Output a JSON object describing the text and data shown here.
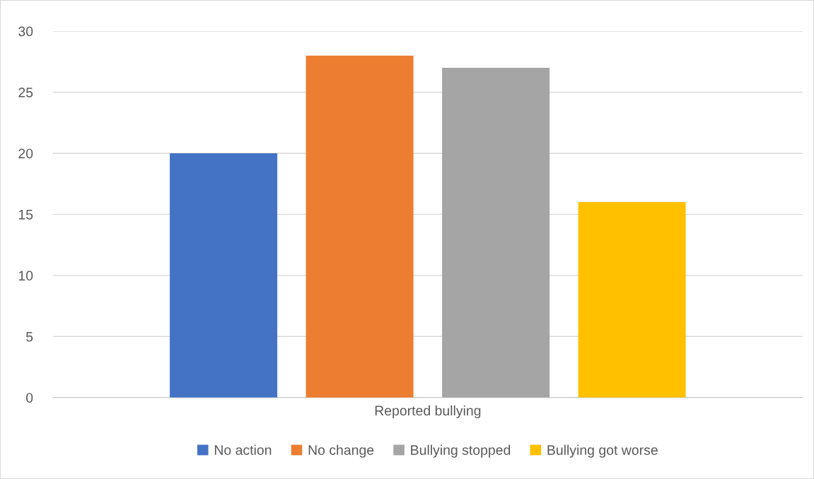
{
  "chart_data": {
    "type": "bar",
    "categories": [
      "Reported bullying"
    ],
    "series": [
      {
        "name": "No action",
        "color": "#4472c4",
        "values": [
          20
        ]
      },
      {
        "name": "No change",
        "color": "#ed7d31",
        "values": [
          28
        ]
      },
      {
        "name": "Bullying stopped",
        "color": "#a5a5a5",
        "values": [
          27
        ]
      },
      {
        "name": "Bullying got worse",
        "color": "#ffc000",
        "values": [
          16
        ]
      }
    ],
    "ylim": [
      0,
      30
    ],
    "yticks": [
      0,
      5,
      10,
      15,
      20,
      25,
      30
    ],
    "grid": "y",
    "legend": "bottom"
  }
}
